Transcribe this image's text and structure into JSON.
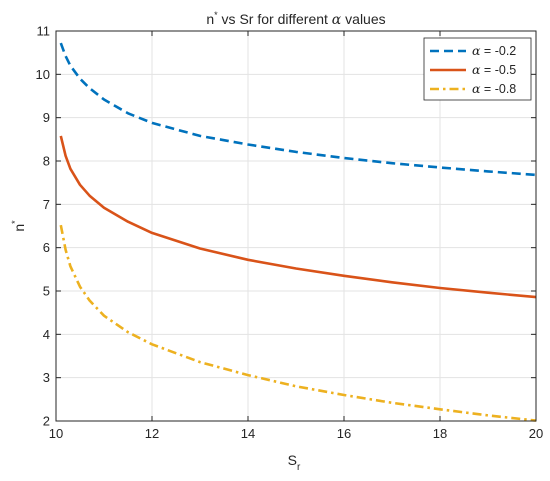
{
  "chart_data": {
    "type": "line",
    "title": {
      "pre": "n",
      "sup": "*",
      "mid": " vs Sr for different ",
      "greek": "α",
      "post": " values"
    },
    "xlabel": {
      "base": "S",
      "sub": "r"
    },
    "ylabel": {
      "base": "n",
      "sup": "*"
    },
    "xlim": [
      10,
      20
    ],
    "ylim": [
      2,
      11
    ],
    "xticks": [
      10,
      12,
      14,
      16,
      18,
      20
    ],
    "yticks": [
      2,
      3,
      4,
      5,
      6,
      7,
      8,
      9,
      10,
      11
    ],
    "grid": true,
    "legend_position": "top-right",
    "series": [
      {
        "name": "α = -0.2",
        "legend_greek": "α",
        "legend_rest": " = -0.2",
        "color": "#0072BD",
        "style": "dashed",
        "x": [
          10.1,
          10.2,
          10.3,
          10.5,
          10.7,
          11.0,
          11.5,
          12.0,
          13.0,
          14.0,
          15.0,
          16.0,
          17.0,
          18.0,
          19.0,
          20.0
        ],
        "y": [
          10.72,
          10.42,
          10.2,
          9.9,
          9.68,
          9.42,
          9.1,
          8.88,
          8.58,
          8.38,
          8.21,
          8.07,
          7.95,
          7.85,
          7.76,
          7.68
        ]
      },
      {
        "name": "α = -0.5",
        "legend_greek": "α",
        "legend_rest": " = -0.5",
        "color": "#D95319",
        "style": "solid",
        "x": [
          10.1,
          10.2,
          10.3,
          10.5,
          10.7,
          11.0,
          11.5,
          12.0,
          13.0,
          14.0,
          15.0,
          16.0,
          17.0,
          18.0,
          19.0,
          20.0
        ],
        "y": [
          8.58,
          8.12,
          7.82,
          7.45,
          7.2,
          6.92,
          6.6,
          6.34,
          5.98,
          5.72,
          5.52,
          5.35,
          5.2,
          5.07,
          4.96,
          4.86
        ]
      },
      {
        "name": "α = -0.8",
        "legend_greek": "α",
        "legend_rest": " = -0.8",
        "color": "#EDB120",
        "style": "dashdot",
        "x": [
          10.1,
          10.2,
          10.3,
          10.5,
          10.7,
          11.0,
          11.5,
          12.0,
          13.0,
          14.0,
          15.0,
          16.0,
          17.0,
          18.0,
          19.0,
          20.0
        ],
        "y": [
          6.52,
          5.95,
          5.57,
          5.1,
          4.78,
          4.43,
          4.05,
          3.77,
          3.36,
          3.06,
          2.8,
          2.6,
          2.42,
          2.27,
          2.13,
          2.01
        ]
      }
    ]
  }
}
